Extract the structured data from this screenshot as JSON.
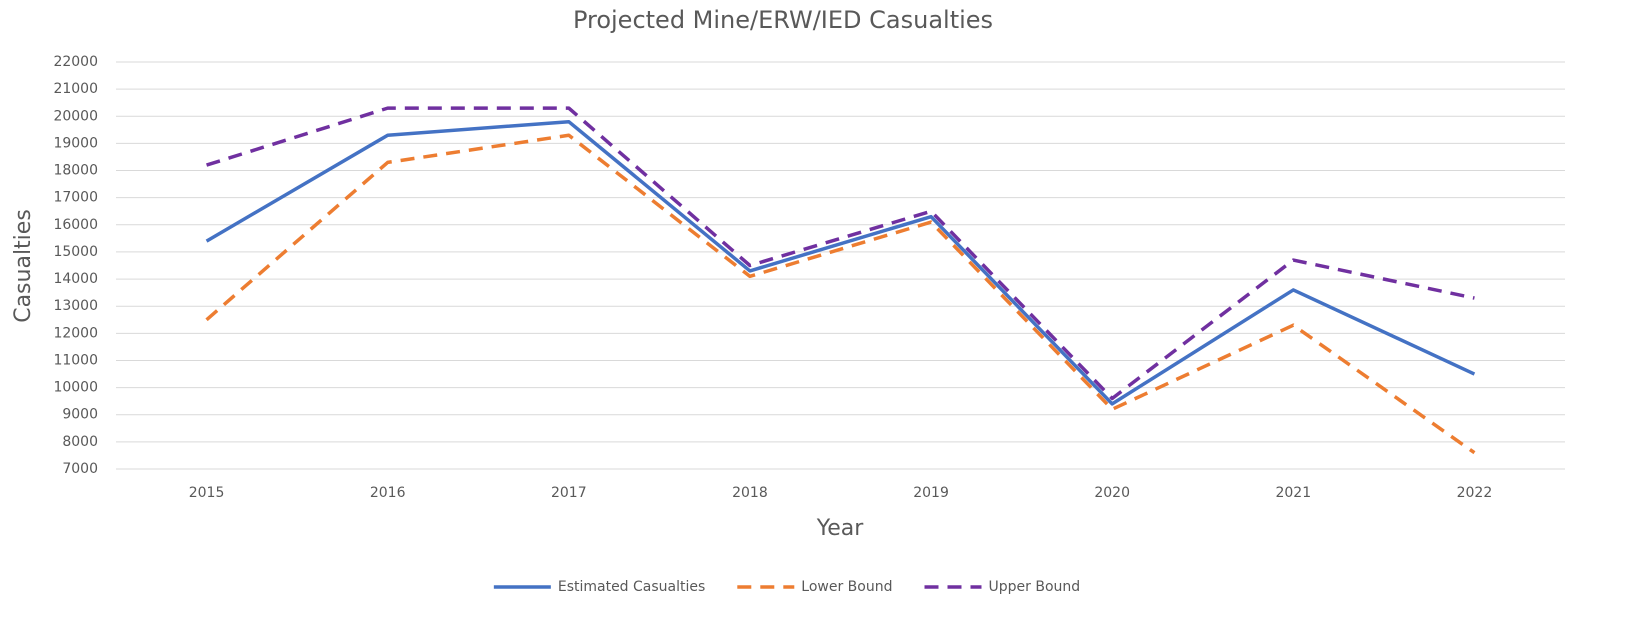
{
  "chart_data": {
    "type": "line",
    "title": "Projected Mine/ERW/IED Casualties",
    "x_label": "Year",
    "y_label": "Casualties",
    "categories": [
      "2015",
      "2016",
      "2017",
      "2018",
      "2019",
      "2020",
      "2021",
      "2022"
    ],
    "series": [
      {
        "name": "Estimated Casualties",
        "color": "#4472c4",
        "dashed": false,
        "values": [
          15400,
          19300,
          19800,
          14300,
          16300,
          9400,
          13600,
          10500
        ]
      },
      {
        "name": "Lower Bound",
        "color": "#ed7d31",
        "dashed": true,
        "values": [
          12500,
          18300,
          19300,
          14100,
          16100,
          9200,
          12300,
          7600
        ]
      },
      {
        "name": "Upper Bound",
        "color": "#7030a0",
        "dashed": true,
        "values": [
          18200,
          20300,
          20300,
          14500,
          16500,
          9600,
          14700,
          13300
        ]
      }
    ],
    "ylim": [
      7000,
      22000
    ],
    "yticks": [
      7000,
      8000,
      9000,
      10000,
      11000,
      12000,
      13000,
      14000,
      15000,
      16000,
      17000,
      18000,
      19000,
      20000,
      21000,
      22000
    ],
    "grid": true,
    "legend": "bottom"
  }
}
